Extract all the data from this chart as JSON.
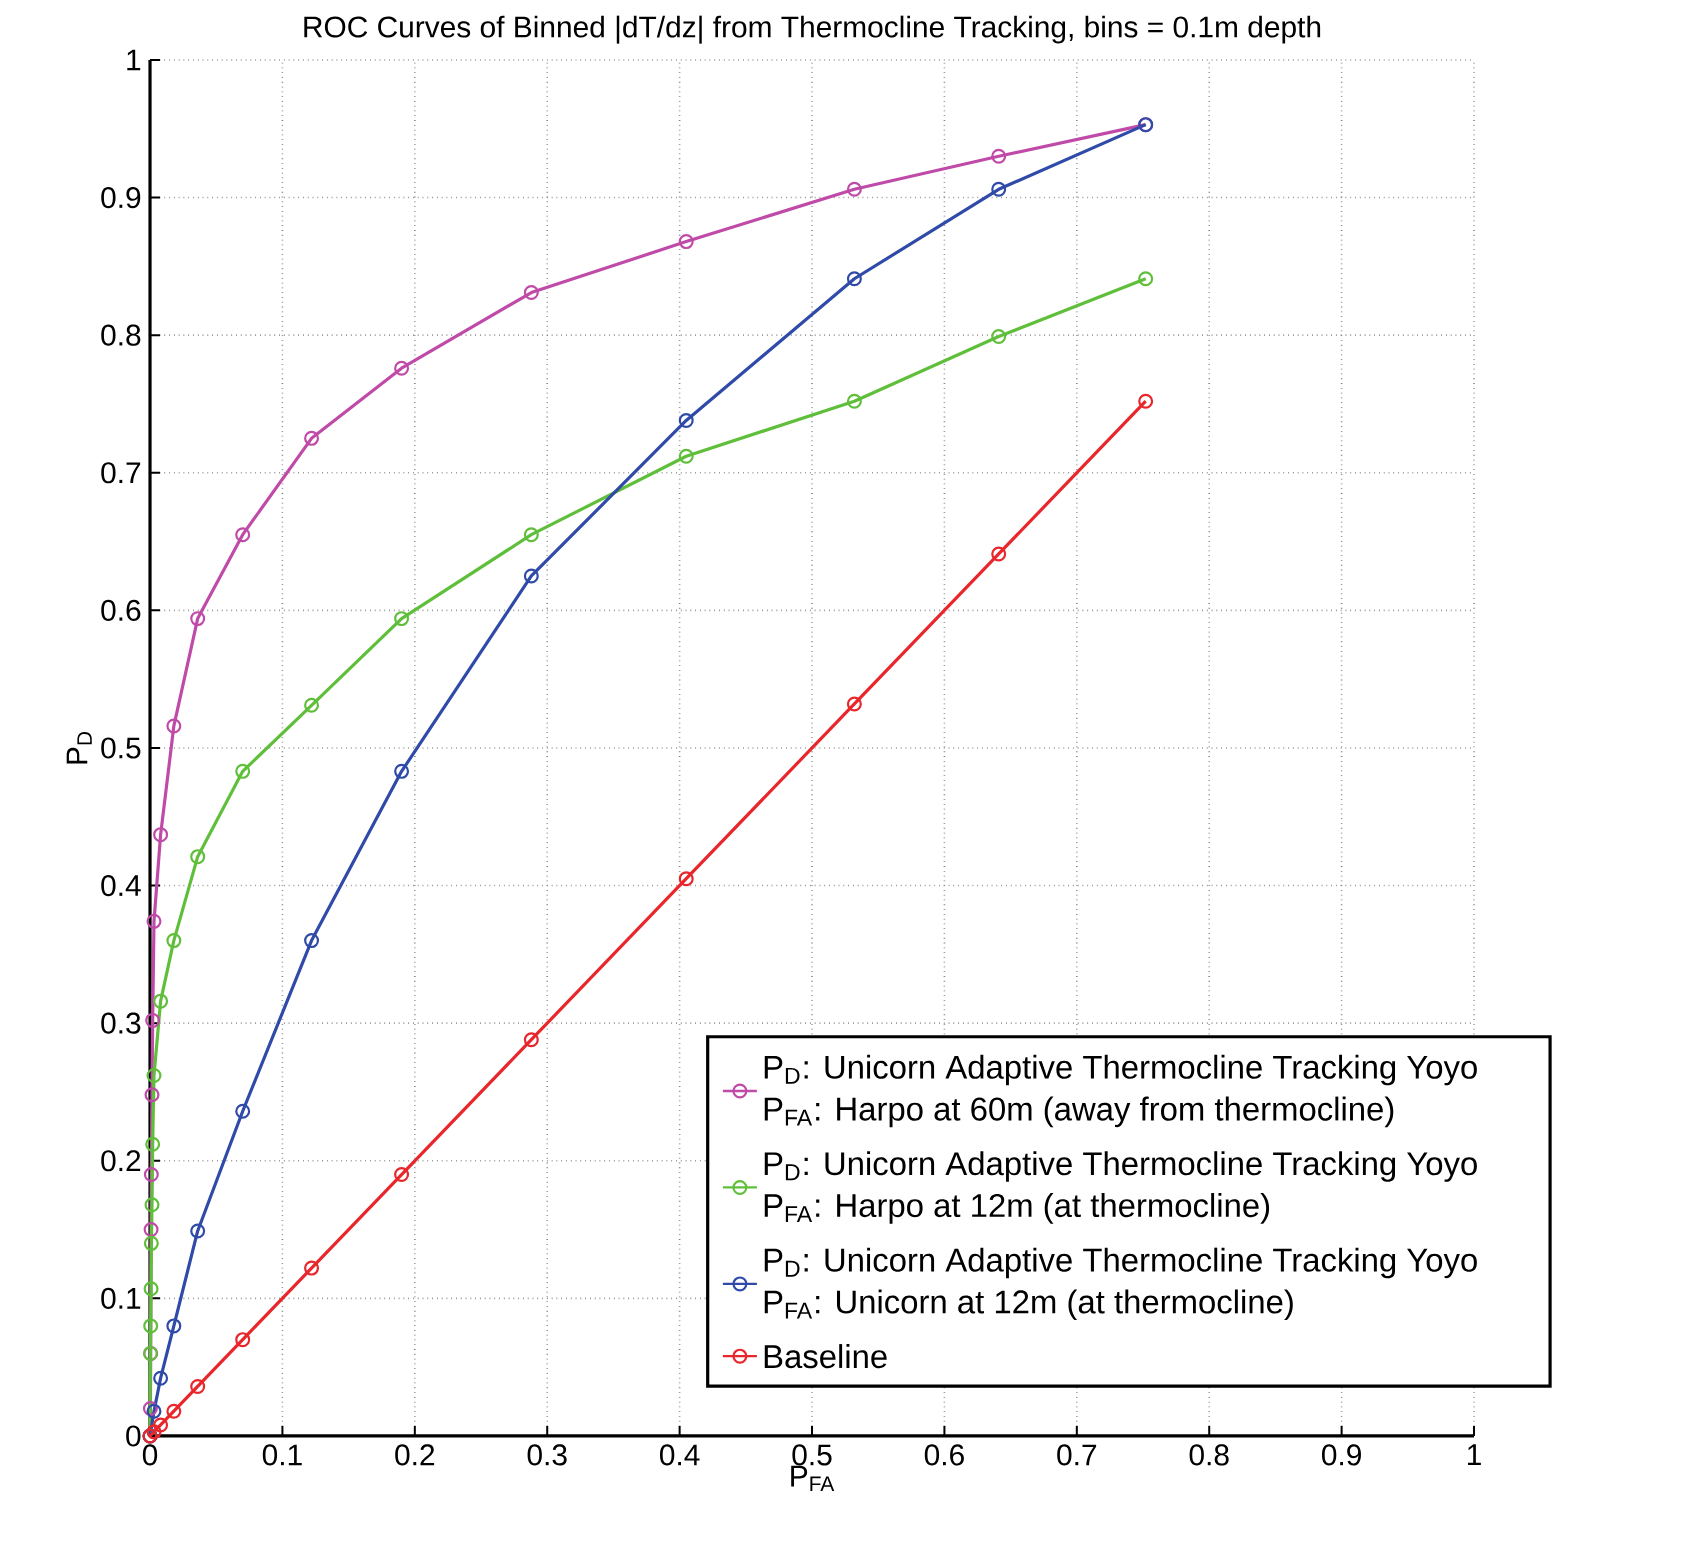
{
  "chart_data": {
    "type": "line",
    "title": "ROC Curves of Binned |dT/dz| from Thermocline Tracking, bins = 0.1m depth",
    "xlabel": "P$_{FA}$",
    "ylabel": "P$_{D}$",
    "xlim": [
      0,
      1
    ],
    "ylim": [
      0,
      1
    ],
    "xticks": [
      0,
      0.1,
      0.2,
      0.3,
      0.4,
      0.5,
      0.6,
      0.7,
      0.8,
      0.9,
      1
    ],
    "yticks": [
      0,
      0.1,
      0.2,
      0.3,
      0.4,
      0.5,
      0.6,
      0.7,
      0.8,
      0.9,
      1
    ],
    "grid": true,
    "legend": "bottom right",
    "marker": "circle",
    "line_style": "solid",
    "series": [
      {
        "name": "P$_{D}$: Unicorn Adaptive Thermocline Tracking Yoyo P$_{FA}$: Harpo at 60m (away from thermocline)",
        "color": "#c04aa8",
        "x": [
          0,
          0.0003,
          0.0005,
          0.0008,
          0.001,
          0.0015,
          0.002,
          0.003,
          0.008,
          0.018,
          0.036,
          0.07,
          0.122,
          0.19,
          0.288,
          0.405,
          0.532,
          0.641,
          0.752
        ],
        "values": [
          0,
          0.02,
          0.06,
          0.15,
          0.19,
          0.248,
          0.302,
          0.374,
          0.437,
          0.516,
          0.594,
          0.655,
          0.725,
          0.776,
          0.831,
          0.868,
          0.906,
          0.93,
          0.953
        ]
      },
      {
        "name": "P$_{D}$: Unicorn Adaptive Thermocline Tracking Yoyo P$_{FA}$: Harpo at 12m (at thermocline)",
        "color": "#5fbf3a",
        "x": [
          0,
          0.0003,
          0.0005,
          0.0008,
          0.001,
          0.0015,
          0.002,
          0.003,
          0.008,
          0.018,
          0.036,
          0.07,
          0.122,
          0.19,
          0.288,
          0.405,
          0.532,
          0.641,
          0.752
        ],
        "values": [
          0,
          0.06,
          0.08,
          0.107,
          0.14,
          0.168,
          0.212,
          0.262,
          0.316,
          0.36,
          0.421,
          0.483,
          0.531,
          0.594,
          0.655,
          0.712,
          0.752,
          0.799,
          0.841
        ]
      },
      {
        "name": "P$_{D}$: Unicorn Adaptive Thermocline Tracking Yoyo P$_{FA}$: Unicorn at 12m (at thermocline)",
        "color": "#2f4aa8",
        "x": [
          0,
          0.003,
          0.008,
          0.018,
          0.036,
          0.07,
          0.122,
          0.19,
          0.288,
          0.405,
          0.532,
          0.641,
          0.752
        ],
        "values": [
          0,
          0.018,
          0.042,
          0.08,
          0.149,
          0.236,
          0.36,
          0.483,
          0.625,
          0.738,
          0.841,
          0.906,
          0.953
        ]
      },
      {
        "name": "Baseline",
        "color": "#e8262b",
        "x": [
          0,
          0.003,
          0.008,
          0.018,
          0.036,
          0.07,
          0.122,
          0.19,
          0.288,
          0.405,
          0.532,
          0.641,
          0.752
        ],
        "values": [
          0,
          0.003,
          0.008,
          0.018,
          0.036,
          0.07,
          0.122,
          0.19,
          0.288,
          0.405,
          0.532,
          0.641,
          0.752
        ]
      }
    ]
  }
}
